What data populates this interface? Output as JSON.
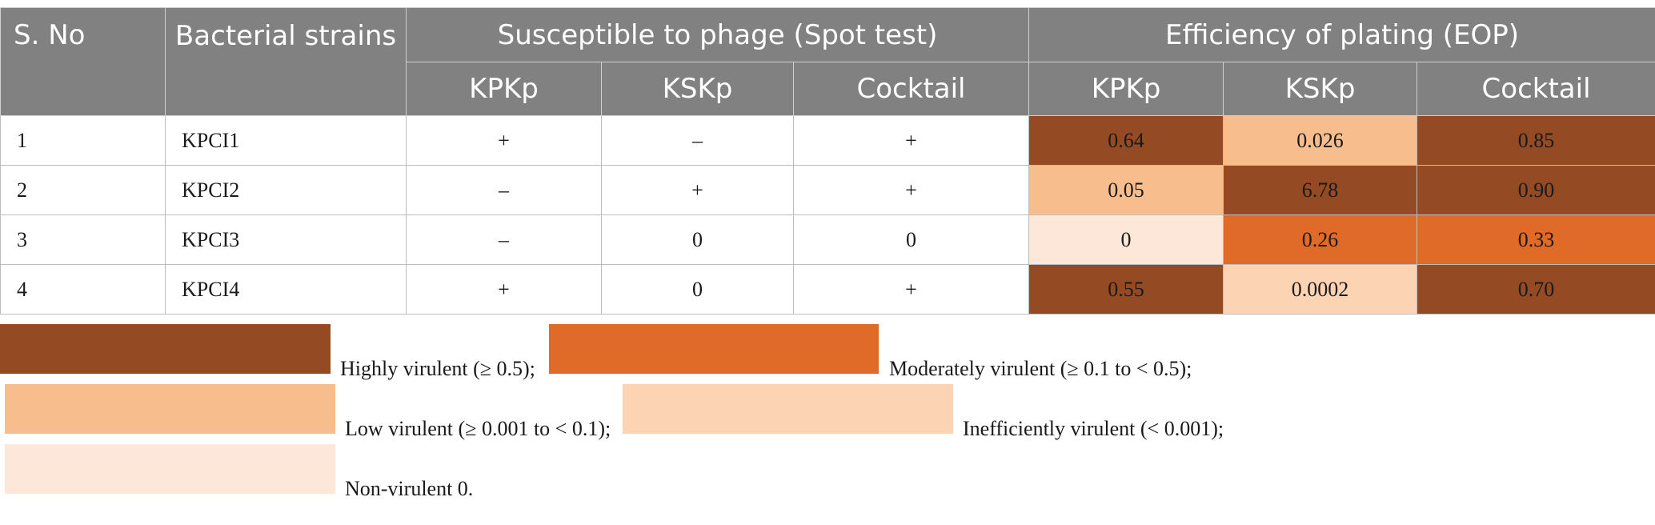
{
  "colors": {
    "header_bg": "#808180",
    "highly": "#944a22",
    "moderately": "#e06a28",
    "low": "#f7bd8d",
    "inefficient": "#fcd3b3",
    "non": "#fce7d8"
  },
  "header": {
    "sno": "S. No",
    "strains": "Bacterial strains",
    "spot": "Susceptible to phage (Spot test)",
    "eop": "Efficiency of plating (EOP)",
    "sub": [
      "KPKp",
      "KSKp",
      "Cocktail",
      "KPKp",
      "KSKp",
      "Cocktail"
    ]
  },
  "rows": [
    {
      "sno": "1",
      "strain": "KPCI1",
      "spot": [
        "+",
        "–",
        "+"
      ],
      "eop": [
        "0.64",
        "0.026",
        "0.85"
      ],
      "eop_class": [
        "highly",
        "low",
        "highly"
      ]
    },
    {
      "sno": "2",
      "strain": "KPCI2",
      "spot": [
        "–",
        "+",
        "+"
      ],
      "eop": [
        "0.05",
        "6.78",
        "0.90"
      ],
      "eop_class": [
        "low",
        "highly",
        "highly"
      ]
    },
    {
      "sno": "3",
      "strain": "KPCI3",
      "spot": [
        "–",
        "0",
        "0"
      ],
      "eop": [
        "0",
        "0.26",
        "0.33"
      ],
      "eop_class": [
        "non",
        "moderately",
        "moderately"
      ]
    },
    {
      "sno": "4",
      "strain": "KPCI4",
      "spot": [
        "+",
        "0",
        "+"
      ],
      "eop": [
        "0.55",
        "0.0002",
        "0.70"
      ],
      "eop_class": [
        "highly",
        "inefficient",
        "highly"
      ]
    }
  ],
  "legend": {
    "highly": "Highly virulent (≥ 0.5);",
    "moderately": "Moderately virulent (≥ 0.1 to < 0.5);",
    "low": "Low virulent (≥ 0.001 to < 0.1);",
    "inefficient": "Inefficiently virulent (< 0.001);",
    "non": "Non-virulent 0."
  }
}
